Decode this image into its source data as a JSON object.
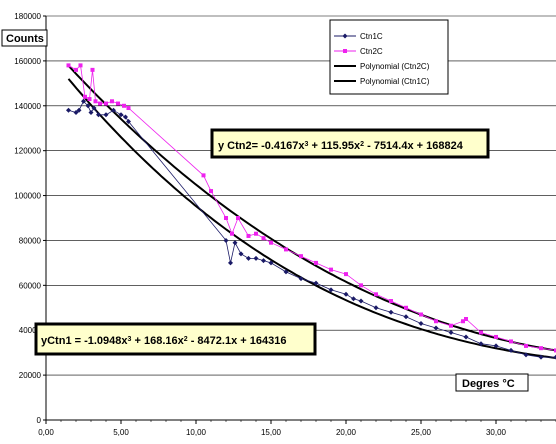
{
  "chart_data": {
    "type": "scatter",
    "xlabel": "Degres °C",
    "ylabel": "Counts",
    "xlim": [
      0,
      34
    ],
    "ylim": [
      0,
      180000
    ],
    "x_ticks": [
      "0,00",
      "5,00",
      "10,00",
      "15,00",
      "20,00",
      "25,00",
      "30,00"
    ],
    "y_ticks": [
      "0",
      "20000",
      "40000",
      "60000",
      "80000",
      "100000",
      "120000",
      "140000",
      "160000",
      "180000"
    ],
    "grid": "horizontal",
    "legend_position": "top-right",
    "legend": [
      "Ctn1C",
      "Ctn2C",
      "Polynomial (Ctn2C)",
      "Polynomial (Ctn1C)"
    ],
    "series": [
      {
        "name": "Ctn1C",
        "color": "#1a1a66",
        "marker": "diamond",
        "points": [
          [
            1.5,
            138000
          ],
          [
            2.0,
            137000
          ],
          [
            2.2,
            138000
          ],
          [
            2.5,
            142000
          ],
          [
            2.8,
            140000
          ],
          [
            3.0,
            137000
          ],
          [
            3.2,
            139000
          ],
          [
            3.5,
            136000
          ],
          [
            4.0,
            136000
          ],
          [
            4.5,
            138000
          ],
          [
            5.0,
            136000
          ],
          [
            5.3,
            135000
          ],
          [
            5.5,
            133000
          ],
          [
            12.0,
            80000
          ],
          [
            12.3,
            70000
          ],
          [
            12.6,
            79000
          ],
          [
            13.0,
            74000
          ],
          [
            13.5,
            72000
          ],
          [
            14.0,
            72000
          ],
          [
            14.5,
            71000
          ],
          [
            15.0,
            70000
          ],
          [
            16.0,
            66000
          ],
          [
            17.0,
            63000
          ],
          [
            18.0,
            61000
          ],
          [
            19.0,
            58000
          ],
          [
            20.0,
            56000
          ],
          [
            20.5,
            54000
          ],
          [
            21.0,
            53000
          ],
          [
            22.0,
            50000
          ],
          [
            23.0,
            48000
          ],
          [
            24.0,
            46000
          ],
          [
            25.0,
            43000
          ],
          [
            26.0,
            41000
          ],
          [
            27.0,
            39000
          ],
          [
            28.0,
            37000
          ],
          [
            29.0,
            34000
          ],
          [
            30.0,
            33000
          ],
          [
            31.0,
            31000
          ],
          [
            32.0,
            29000
          ],
          [
            33.0,
            28000
          ],
          [
            34.0,
            28000
          ]
        ]
      },
      {
        "name": "Ctn2C",
        "color": "#ee22ee",
        "marker": "square",
        "points": [
          [
            1.5,
            158000
          ],
          [
            2.0,
            156000
          ],
          [
            2.3,
            158000
          ],
          [
            2.6,
            144000
          ],
          [
            2.9,
            143000
          ],
          [
            3.1,
            156000
          ],
          [
            3.3,
            142000
          ],
          [
            3.6,
            141000
          ],
          [
            4.0,
            141000
          ],
          [
            4.4,
            142000
          ],
          [
            4.8,
            141000
          ],
          [
            5.2,
            140000
          ],
          [
            5.5,
            139000
          ],
          [
            10.5,
            109000
          ],
          [
            11.0,
            102000
          ],
          [
            12.0,
            90000
          ],
          [
            12.4,
            83000
          ],
          [
            12.8,
            90000
          ],
          [
            13.5,
            82000
          ],
          [
            14.0,
            83000
          ],
          [
            14.5,
            81000
          ],
          [
            15.0,
            79000
          ],
          [
            16.0,
            76000
          ],
          [
            17.0,
            73000
          ],
          [
            18.0,
            70000
          ],
          [
            19.0,
            67000
          ],
          [
            20.0,
            65000
          ],
          [
            21.0,
            60000
          ],
          [
            22.0,
            56000
          ],
          [
            23.0,
            53000
          ],
          [
            24.0,
            50000
          ],
          [
            25.0,
            47000
          ],
          [
            26.0,
            44000
          ],
          [
            27.0,
            42000
          ],
          [
            27.8,
            44000
          ],
          [
            28.0,
            45000
          ],
          [
            29.0,
            39000
          ],
          [
            30.0,
            37000
          ],
          [
            31.0,
            35000
          ],
          [
            32.0,
            33000
          ],
          [
            33.0,
            32000
          ],
          [
            34.0,
            31000
          ]
        ]
      }
    ],
    "trendlines": [
      {
        "name": "Polynomial (Ctn2C)",
        "coefficients": [
          -0.4167,
          115.95,
          -7514.4,
          168824
        ],
        "x_range": [
          1.5,
          34
        ]
      },
      {
        "name": "Polynomial (Ctn1C)",
        "coefficients": [
          -1.0948,
          168.16,
          -8472.1,
          164316
        ],
        "x_range": [
          1.5,
          34
        ]
      }
    ],
    "equation_labels": {
      "ctn2": {
        "prefix": "y Ctn2= -0.4167x",
        "t1": " + 115.95x",
        "t2": " - 7514.4x + 168824"
      },
      "ctn1": {
        "prefix": "yCtn1 = -1.0948x",
        "t1": " + 168.16x",
        "t2": " - 8472.1x + 164316"
      },
      "sup3": "3",
      "sup2": "2"
    }
  }
}
